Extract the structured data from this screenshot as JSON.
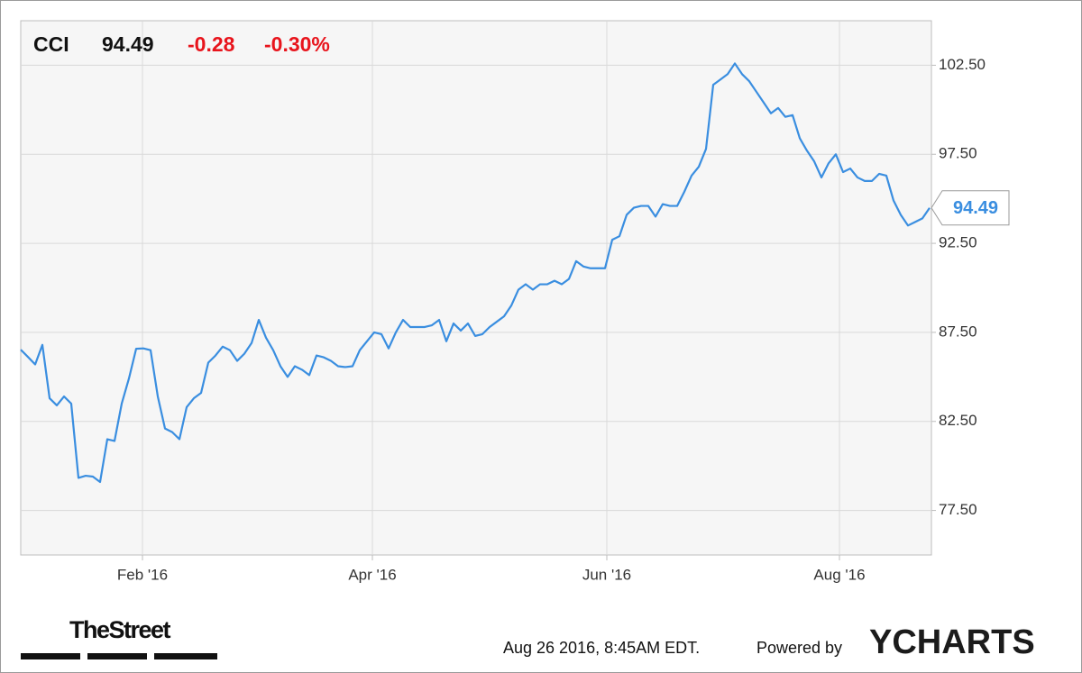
{
  "header": {
    "symbol": "CCI",
    "price": "94.49",
    "change": "-0.28",
    "change_percent": "-0.30%"
  },
  "chart_data": {
    "type": "line",
    "series": [
      {
        "name": "CCI",
        "color": "#3a8ee0",
        "values": [
          86.53,
          86.12,
          85.7,
          86.8,
          83.8,
          83.4,
          83.9,
          83.5,
          79.33,
          79.45,
          79.4,
          79.1,
          81.5,
          81.4,
          83.5,
          84.91,
          86.58,
          86.6,
          86.5,
          83.9,
          82.1,
          81.9,
          81.5,
          83.3,
          83.8,
          84.1,
          85.8,
          86.2,
          86.7,
          86.5,
          85.9,
          86.3,
          86.9,
          88.2,
          87.2,
          86.5,
          85.6,
          85.0,
          85.6,
          85.4,
          85.1,
          86.2,
          86.1,
          85.9,
          85.6,
          85.55,
          85.6,
          86.5,
          87.0,
          87.5,
          87.4,
          86.6,
          87.5,
          88.2,
          87.8,
          87.8,
          87.8,
          87.9,
          88.2,
          87.0,
          88.0,
          87.6,
          88.0,
          87.3,
          87.4,
          87.8,
          88.1,
          88.4,
          89.0,
          89.9,
          90.2,
          89.9,
          90.2,
          90.2,
          90.4,
          90.2,
          90.5,
          91.5,
          91.2,
          91.1,
          91.1,
          91.1,
          92.7,
          92.9,
          94.1,
          94.5,
          94.6,
          94.6,
          94.0,
          94.7,
          94.6,
          94.6,
          95.4,
          96.3,
          96.8,
          97.8,
          101.4,
          101.7,
          102.0,
          102.6,
          102.0,
          101.6,
          101.0,
          100.4,
          99.8,
          100.1,
          99.6,
          99.7,
          98.4,
          97.7,
          97.1,
          96.2,
          97.0,
          97.5,
          96.5,
          96.7,
          96.2,
          96.0,
          96.0,
          96.4,
          96.3,
          94.9,
          94.1,
          93.5,
          93.7,
          93.9,
          94.49
        ]
      }
    ],
    "xlim": [
      0,
      126
    ],
    "xticks": [
      {
        "value": 16.875,
        "label": "Feb '16"
      },
      {
        "value": 48.75,
        "label": "Apr '16"
      },
      {
        "value": 81.25,
        "label": "Jun '16"
      },
      {
        "value": 113.5,
        "label": "Aug '16"
      }
    ],
    "ylim": [
      75,
      105
    ],
    "yticks": [
      {
        "value": 77.5,
        "label": "77.50"
      },
      {
        "value": 82.5,
        "label": "82.50"
      },
      {
        "value": 87.5,
        "label": "87.50"
      },
      {
        "value": 92.5,
        "label": "92.50"
      },
      {
        "value": 97.5,
        "label": "97.50"
      },
      {
        "value": 102.5,
        "label": "102.50"
      }
    ],
    "grid": true
  },
  "footer": {
    "source": "TheStreet",
    "timestamp": "Aug 26 2016, 8:45AM EDT.",
    "powered_by": "Powered by",
    "brand": "YCHARTS"
  }
}
